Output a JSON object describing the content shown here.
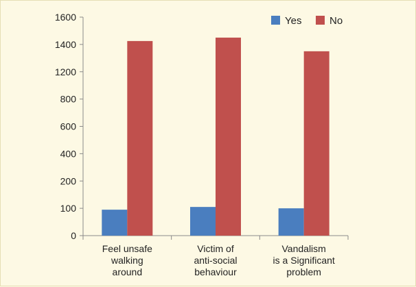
{
  "chart_data": {
    "type": "bar",
    "categories": [
      [
        "Feel unsafe",
        "walking",
        "around"
      ],
      [
        "Victim of",
        "anti-social",
        "behaviour"
      ],
      [
        "Vandalism",
        "is a Significant",
        "problem"
      ]
    ],
    "series": [
      {
        "name": "Yes",
        "color": "#4a7ebf",
        "values": [
          95,
          105,
          100
        ]
      },
      {
        "name": "No",
        "color": "#c0504d",
        "values": [
          1425,
          1450,
          1350
        ]
      }
    ],
    "y_ticks": [
      0,
      100,
      200,
      400,
      600,
      800,
      1200,
      1400,
      1600
    ],
    "ylim": [
      0,
      1600
    ],
    "legend": "top-right",
    "grid": false
  }
}
